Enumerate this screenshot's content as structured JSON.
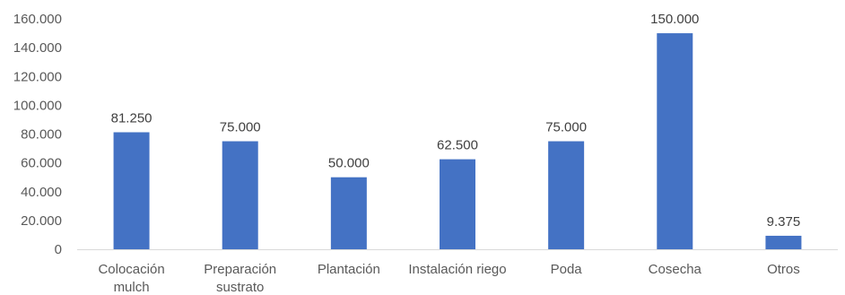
{
  "chart_data": {
    "type": "bar",
    "categories": [
      [
        "Colocación",
        "mulch"
      ],
      [
        "Preparación",
        "sustrato"
      ],
      [
        "Plantación"
      ],
      [
        "Instalación riego"
      ],
      [
        "Poda"
      ],
      [
        "Cosecha"
      ],
      [
        "Otros"
      ]
    ],
    "values": [
      81250,
      75000,
      50000,
      62500,
      75000,
      150000,
      9375
    ],
    "value_labels": [
      "81.250",
      "75.000",
      "50.000",
      "62.500",
      "75.000",
      "150.000",
      "9.375"
    ],
    "yticks": [
      0,
      20000,
      40000,
      60000,
      80000,
      100000,
      120000,
      140000,
      160000
    ],
    "ytick_labels": [
      "0",
      "20.000",
      "40.000",
      "60.000",
      "80.000",
      "100.000",
      "120.000",
      "140.000",
      "160.000"
    ],
    "ylim": [
      0,
      160000
    ],
    "grid": false,
    "bar_color": "#4472C4",
    "axis_color": "#D9D9D9"
  }
}
